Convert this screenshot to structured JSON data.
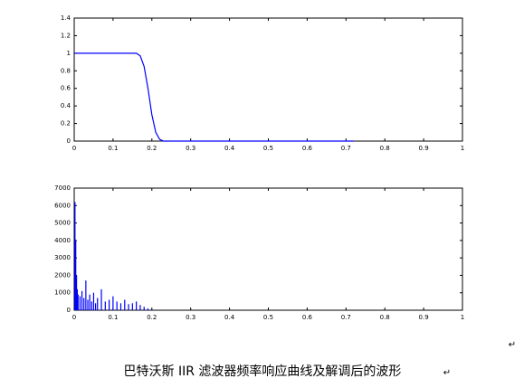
{
  "chart_data": [
    {
      "type": "line",
      "x": [
        0,
        0.16,
        0.17,
        0.18,
        0.19,
        0.2,
        0.21,
        0.22,
        0.23,
        0.72
      ],
      "values": [
        1,
        1,
        0.97,
        0.85,
        0.6,
        0.3,
        0.1,
        0.02,
        0,
        0
      ],
      "color": "#0000ff",
      "xlim": [
        0,
        1
      ],
      "ylim": [
        0,
        1.4
      ],
      "xticks": [
        0,
        0.1,
        0.2,
        0.3,
        0.4,
        0.5,
        0.6,
        0.7,
        0.8,
        0.9,
        1
      ],
      "yticks": [
        0,
        0.2,
        0.4,
        0.6,
        0.8,
        1,
        1.2,
        1.4
      ]
    },
    {
      "type": "stem",
      "x": [
        0.002,
        0.004,
        0.006,
        0.008,
        0.01,
        0.015,
        0.02,
        0.025,
        0.03,
        0.035,
        0.04,
        0.045,
        0.05,
        0.055,
        0.06,
        0.07,
        0.08,
        0.09,
        0.1,
        0.11,
        0.12,
        0.13,
        0.14,
        0.15,
        0.16,
        0.17,
        0.18,
        0.19,
        0.2
      ],
      "values": [
        6200,
        4000,
        2000,
        1200,
        900,
        800,
        1100,
        700,
        1700,
        600,
        900,
        500,
        1000,
        400,
        700,
        1200,
        500,
        600,
        800,
        500,
        400,
        600,
        350,
        400,
        500,
        300,
        200,
        100,
        50
      ],
      "color": "#0000ff",
      "xlim": [
        0,
        1
      ],
      "ylim": [
        0,
        7000
      ],
      "xticks": [
        0,
        0.1,
        0.2,
        0.3,
        0.4,
        0.5,
        0.6,
        0.7,
        0.8,
        0.9,
        1
      ],
      "yticks": [
        0,
        1000,
        2000,
        3000,
        4000,
        5000,
        6000,
        7000
      ]
    }
  ],
  "caption": "巴特沃斯 IIR 滤波器频率响应曲线及解调后的波形",
  "marks": [
    "↵",
    "↵"
  ]
}
